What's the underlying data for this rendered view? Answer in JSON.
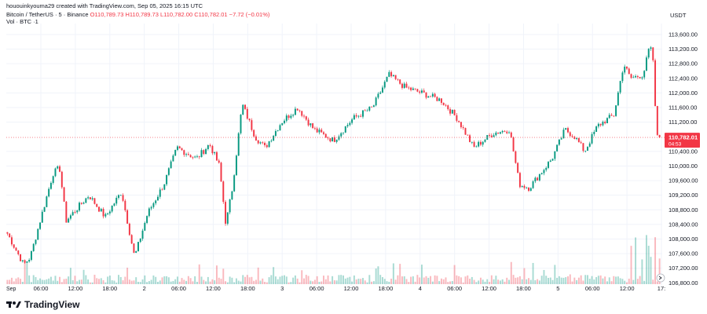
{
  "header": {
    "created_by": "hououinkyouma29 created with TradingView.com, Sep 05, 2025 16:15 UTC",
    "symbol": "Bitcoin / TetherUS · 5 · Binance",
    "ohlc": "O110,789.73  H110,789.73  L110,782.00  C110,782.01  −7.72 (−0.01%)",
    "volume_label": "Vol · BTC  ·1"
  },
  "axis": {
    "currency": "USDT",
    "clipped_left_label": "Sep"
  },
  "price_tag": {
    "price": "110,782.01",
    "countdown": "04:53"
  },
  "brand": {
    "name": "TradingView"
  },
  "colors": {
    "up": "#089981",
    "down": "#f23645",
    "grid": "#f0f3fa",
    "text": "#131722"
  },
  "chart_data": {
    "type": "candlestick",
    "title": "Bitcoin / TetherUS · 5 · Binance",
    "y_ticks": [
      "113,600.00",
      "113,200.00",
      "112,800.00",
      "112,400.00",
      "112,000.00",
      "111,600.00",
      "111,200.00",
      "110,400.00",
      "110,000.00",
      "109,600.00",
      "109,200.00",
      "108,800.00",
      "108,400.00",
      "108,000.00",
      "107,600.00",
      "107,200.00",
      "106,800.00"
    ],
    "ylim": [
      106700,
      113900
    ],
    "x_ticks": [
      "06:00",
      "12:00",
      "18:00",
      "2",
      "06:00",
      "12:00",
      "18:00",
      "3",
      "06:00",
      "12:00",
      "18:00",
      "4",
      "06:00",
      "12:00",
      "18:00",
      "5",
      "06:00",
      "12:00",
      "17:"
    ],
    "last_price": 110782.01,
    "series": [
      {
        "anchors": [
          {
            "t": 0,
            "p": 108150
          },
          {
            "t": 0.025,
            "p": 107300
          },
          {
            "t": 0.035,
            "p": 107500
          },
          {
            "t": 0.07,
            "p": 109800
          },
          {
            "t": 0.08,
            "p": 109950
          },
          {
            "t": 0.09,
            "p": 108500
          },
          {
            "t": 0.105,
            "p": 108800
          },
          {
            "t": 0.125,
            "p": 109200
          },
          {
            "t": 0.15,
            "p": 108600
          },
          {
            "t": 0.175,
            "p": 109300
          },
          {
            "t": 0.195,
            "p": 107500
          },
          {
            "t": 0.215,
            "p": 108700
          },
          {
            "t": 0.24,
            "p": 109500
          },
          {
            "t": 0.26,
            "p": 110500
          },
          {
            "t": 0.29,
            "p": 110200
          },
          {
            "t": 0.31,
            "p": 110600
          },
          {
            "t": 0.325,
            "p": 110000
          },
          {
            "t": 0.335,
            "p": 108400
          },
          {
            "t": 0.345,
            "p": 109400
          },
          {
            "t": 0.36,
            "p": 111700
          },
          {
            "t": 0.38,
            "p": 110800
          },
          {
            "t": 0.395,
            "p": 110500
          },
          {
            "t": 0.42,
            "p": 111200
          },
          {
            "t": 0.445,
            "p": 111600
          },
          {
            "t": 0.47,
            "p": 111000
          },
          {
            "t": 0.5,
            "p": 110700
          },
          {
            "t": 0.53,
            "p": 111300
          },
          {
            "t": 0.56,
            "p": 111600
          },
          {
            "t": 0.585,
            "p": 112500
          },
          {
            "t": 0.61,
            "p": 112150
          },
          {
            "t": 0.635,
            "p": 112000
          },
          {
            "t": 0.665,
            "p": 111800
          },
          {
            "t": 0.69,
            "p": 111300
          },
          {
            "t": 0.715,
            "p": 110500
          },
          {
            "t": 0.745,
            "p": 110900
          },
          {
            "t": 0.77,
            "p": 111000
          },
          {
            "t": 0.785,
            "p": 109500
          },
          {
            "t": 0.8,
            "p": 109400
          },
          {
            "t": 0.835,
            "p": 110200
          },
          {
            "t": 0.855,
            "p": 111000
          },
          {
            "t": 0.87,
            "p": 110800
          },
          {
            "t": 0.885,
            "p": 110400
          },
          {
            "t": 0.905,
            "p": 111100
          },
          {
            "t": 0.93,
            "p": 111400
          },
          {
            "t": 0.945,
            "p": 112800
          },
          {
            "t": 0.955,
            "p": 112400
          },
          {
            "t": 0.975,
            "p": 112500
          },
          {
            "t": 0.985,
            "p": 113300
          },
          {
            "t": 0.99,
            "p": 112900
          },
          {
            "t": 0.995,
            "p": 110900
          },
          {
            "t": 1.0,
            "p": 110782
          }
        ]
      }
    ]
  }
}
